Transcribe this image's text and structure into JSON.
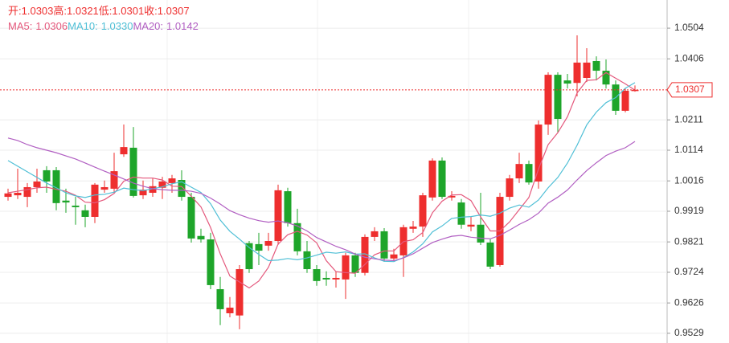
{
  "chart_data": {
    "type": "candlestick",
    "ohlc_labels": [
      "开:",
      "高:",
      "低:",
      "收:"
    ],
    "up_color": "#ee2e2e",
    "down_color": "#1ea52a",
    "open": [
      0.9965,
      0.997,
      0.9965,
      0.9996,
      1.005,
      1.005,
      0.9953,
      0.9937,
      0.9922,
      0.9901,
      0.9988,
      0.9991,
      1.0101,
      1.0122,
      0.997,
      0.9978,
      0.9994,
      1.0009,
      1.0019,
      0.9965,
      0.984,
      0.9829,
      0.967,
      0.9593,
      0.9586,
      0.9817,
      0.9814,
      0.9809,
      0.9824,
      0.9983,
      0.9881,
      0.9791,
      0.9734,
      0.9706,
      0.9701,
      0.9701,
      0.9778,
      0.9722,
      0.9837,
      0.9855,
      0.9768,
      0.9778,
      0.9863,
      0.987,
      0.9963,
      1.0081,
      0.9963,
      0.9947,
      0.987,
      0.9876,
      0.9819,
      0.9747,
      0.9965,
      1.0024,
      1.007,
      1.0014,
      1.0196,
      1.0355,
      1.0337,
      1.0329,
      1.0345,
      1.0399,
      1.0368,
      1.0324,
      1.024,
      1.0303
    ],
    "high": [
      0.9991,
      1.0055,
      1.0009,
      1.0055,
      1.0063,
      1.006,
      0.9991,
      0.9965,
      0.994,
      1.0009,
      1.0017,
      1.0106,
      1.0196,
      1.0188,
      1.0017,
      1.0024,
      1.0029,
      1.0035,
      1.005,
      0.9978,
      0.9863,
      0.985,
      0.9709,
      0.9645,
      0.9747,
      0.9824,
      0.985,
      0.985,
      1.0004,
      0.9994,
      0.9927,
      0.9824,
      0.9747,
      0.9727,
      0.9727,
      0.9786,
      0.9786,
      0.9845,
      0.9868,
      0.9865,
      0.9799,
      0.9876,
      0.9888,
      0.9978,
      1.0088,
      1.0091,
      0.9983,
      0.9958,
      0.9901,
      0.9978,
      0.9829,
      0.9978,
      1.0035,
      1.0106,
      1.0081,
      1.0209,
      1.0363,
      1.0363,
      1.0358,
      1.0481,
      1.044,
      1.0414,
      1.0404,
      1.0337,
      1.0311,
      1.0321
    ],
    "low": [
      0.9953,
      0.9958,
      0.9932,
      0.9978,
      0.9978,
      0.9922,
      0.9914,
      0.9876,
      0.9868,
      0.9881,
      0.9978,
      0.9978,
      1.0093,
      0.9963,
      0.9958,
      0.9965,
      0.9958,
      0.9978,
      0.9953,
      0.9819,
      0.9819,
      0.967,
      0.9555,
      0.958,
      0.9542,
      0.9722,
      0.9747,
      0.9793,
      0.9811,
      0.987,
      0.9778,
      0.9722,
      0.9681,
      0.9681,
      0.9675,
      0.9639,
      0.9709,
      0.9714,
      0.9824,
      0.9758,
      0.976,
      0.9709,
      0.985,
      0.9837,
      0.9953,
      0.9958,
      0.9953,
      0.9863,
      0.9855,
      0.9811,
      0.9734,
      0.9742,
      0.9953,
      1.0009,
      1.0004,
      0.9991,
      1.0163,
      1.017,
      1.0311,
      1.0286,
      1.0332,
      1.0337,
      1.0311,
      1.0227,
      1.0235,
      1.0301
    ],
    "close": [
      0.9976,
      0.9978,
      0.9996,
      1.0014,
      1.0014,
      0.9945,
      0.9947,
      0.9932,
      0.9901,
      1.0004,
      0.9996,
      1.0047,
      1.0124,
      0.9968,
      0.9988,
      0.9999,
      1.0014,
      1.0024,
      0.9965,
      0.9832,
      0.9829,
      0.9683,
      0.9606,
      0.9611,
      0.9734,
      0.9734,
      0.9793,
      0.9824,
      0.9986,
      0.9881,
      0.9791,
      0.9734,
      0.9696,
      0.9701,
      0.9706,
      0.9778,
      0.9722,
      0.9837,
      0.9855,
      0.9768,
      0.9781,
      0.9868,
      0.987,
      0.997,
      1.0081,
      0.9965,
      0.9968,
      0.9876,
      0.9876,
      0.9819,
      0.9742,
      0.9965,
      1.0024,
      1.007,
      1.0011,
      1.0196,
      1.0355,
      1.0214,
      1.0327,
      1.0394,
      1.0394,
      1.0368,
      1.0324,
      1.024,
      1.0304,
      1.0307
    ],
    "series": [
      {
        "name": "MA5:",
        "color": "#e4587c",
        "values": [
          0.9978,
          0.9983,
          0.9988,
          0.9994,
          0.9996,
          0.9989,
          0.9983,
          0.997,
          0.9948,
          0.9946,
          0.9956,
          0.9976,
          1.0015,
          1.0028,
          1.0025,
          1.0025,
          1.0019,
          0.9999,
          0.9998,
          0.9967,
          0.9933,
          0.9867,
          0.9783,
          0.9712,
          0.9693,
          0.9674,
          0.9696,
          0.974,
          0.9814,
          0.9844,
          0.9855,
          0.9843,
          0.9818,
          0.9761,
          0.9726,
          0.9723,
          0.9721,
          0.9749,
          0.978,
          0.9792,
          0.9792,
          0.9822,
          0.9828,
          0.9851,
          0.9914,
          0.9951,
          0.9971,
          0.9972,
          0.9953,
          0.9901,
          0.9856,
          0.9856,
          0.9885,
          0.9924,
          0.9963,
          1.0054,
          1.0132,
          1.017,
          1.0221,
          1.0297,
          1.0337,
          1.0339,
          1.0362,
          1.0344,
          1.0326,
          1.0306
        ]
      },
      {
        "name": "MA10:",
        "color": "#4fbfd6",
        "last_value_label": "1.0330",
        "values": [
          1.0081,
          1.0063,
          1.0045,
          1.0027,
          1.0009,
          0.9994,
          0.9978,
          0.9968,
          0.9963,
          0.9971,
          0.9973,
          0.998,
          0.9993,
          0.9988,
          0.9985,
          0.9991,
          0.9997,
          1.0007,
          1.0013,
          0.9996,
          0.9979,
          0.9943,
          0.9891,
          0.9855,
          0.983,
          0.9803,
          0.9781,
          0.9761,
          0.9763,
          0.9768,
          0.9764,
          0.977,
          0.9779,
          0.9788,
          0.9785,
          0.9789,
          0.9782,
          0.9783,
          0.977,
          0.9759,
          0.9758,
          0.9771,
          0.9789,
          0.9815,
          0.9853,
          0.9872,
          0.9896,
          0.99,
          0.9902,
          0.9907,
          0.9903,
          0.9913,
          0.9929,
          0.9939,
          0.9932,
          0.9955,
          0.9994,
          1.0027,
          1.0073,
          1.013,
          1.0195,
          1.0236,
          1.0266,
          1.0282,
          1.0312,
          1.033
        ]
      },
      {
        "name": "MA20:",
        "color": "#b15fc2",
        "values": [
          1.0153,
          1.0145,
          1.0132,
          1.0122,
          1.0114,
          1.0106,
          1.0096,
          1.0086,
          1.0073,
          1.006,
          1.0047,
          1.0035,
          1.0022,
          1.0009,
          0.9999,
          0.9991,
          0.9988,
          0.9986,
          0.9986,
          0.9983,
          0.9976,
          0.9961,
          0.9942,
          0.9921,
          0.9908,
          0.9897,
          0.9889,
          0.9884,
          0.9888,
          0.9882,
          0.9872,
          0.9856,
          0.9835,
          0.9821,
          0.9807,
          0.9796,
          0.9782,
          0.9772,
          0.9767,
          0.9763,
          0.9761,
          0.977,
          0.9783,
          0.9801,
          0.9819,
          0.983,
          0.9839,
          0.9842,
          0.9836,
          0.9833,
          0.9831,
          0.9842,
          0.9859,
          0.9877,
          0.9892,
          0.9913,
          0.9945,
          0.9964,
          0.9987,
          1.0019,
          1.0049,
          1.0074,
          1.0097,
          1.0111,
          1.0122,
          1.0142
        ]
      }
    ],
    "ylim": [
      0.9498,
      1.0594
    ],
    "yticks": [
      1.0504,
      1.0406,
      1.0211,
      1.0114,
      1.0016,
      0.9919,
      0.9821,
      0.9724,
      0.9626,
      0.9529
    ],
    "grid": true
  }
}
